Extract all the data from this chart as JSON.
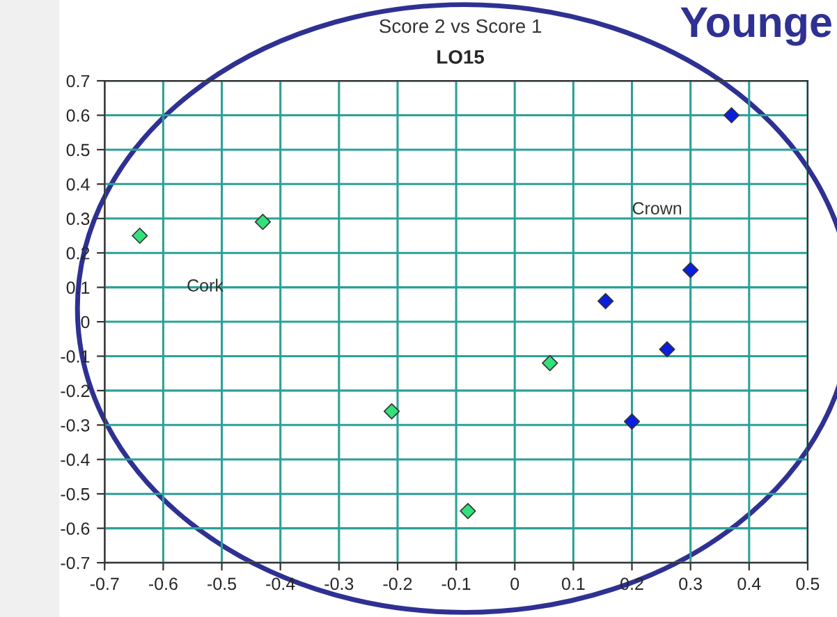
{
  "chart_data": {
    "type": "scatter",
    "title": "Score 2 vs Score 1",
    "subtitle": "LO15",
    "series": [
      {
        "color": "#33e07a",
        "x": [
          -0.64,
          -0.43,
          -0.21,
          -0.08,
          0.06
        ],
        "values": [
          0.25,
          0.29,
          -0.26,
          -0.55,
          -0.12
        ]
      },
      {
        "color": "#0a1ee0",
        "x": [
          0.37,
          0.3,
          0.155,
          0.26,
          0.2
        ],
        "values": [
          0.6,
          0.15,
          0.06,
          -0.08,
          -0.29
        ]
      }
    ],
    "annotations": [
      "Cork",
      "Crown",
      "Younge"
    ],
    "xlim": [
      -0.7,
      0.5
    ],
    "xticks": [
      -0.7,
      -0.6,
      -0.5,
      -0.4,
      -0.3,
      -0.2,
      -0.1,
      0,
      0.1,
      0.2,
      0.3,
      0.4,
      0.5
    ],
    "ylim": [
      -0.7,
      0.7
    ],
    "yticks": [
      -0.7,
      -0.6,
      -0.5,
      -0.4,
      -0.3,
      -0.2,
      -0.1,
      0,
      0.1,
      0.2,
      0.3,
      0.4,
      0.5,
      0.6,
      0.7
    ],
    "grid": true,
    "marker": "diamond",
    "legend": false
  }
}
